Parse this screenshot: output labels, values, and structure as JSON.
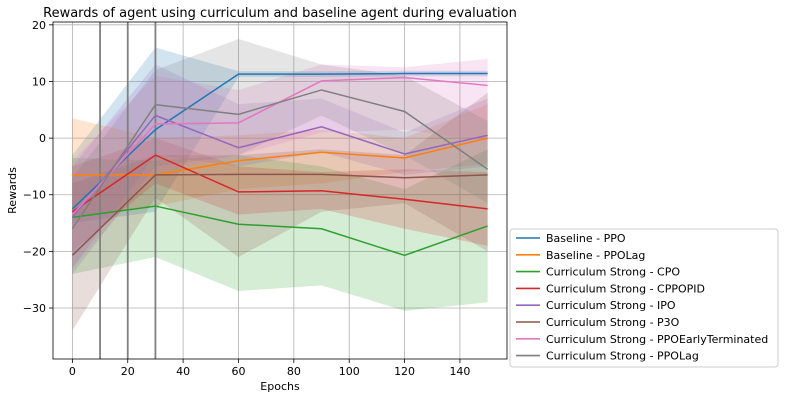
{
  "chart_data": {
    "type": "line",
    "title": "Rewards of agent using curriculum and baseline agent during evaluation",
    "xlabel": "Epochs",
    "ylabel": "Rewards",
    "xlim": [
      -7,
      157
    ],
    "ylim": [
      -39,
      20.5
    ],
    "xticks": [
      0,
      20,
      40,
      60,
      80,
      100,
      120,
      140
    ],
    "yticks": [
      -30,
      -20,
      -10,
      0,
      10,
      20
    ],
    "grid": true,
    "legend": "outside-right-bottom",
    "vlines": [
      10,
      20,
      30
    ],
    "x": [
      0,
      30,
      60,
      90,
      120,
      150
    ],
    "series": [
      {
        "name": "Baseline - PPO",
        "color": "#1f77b4",
        "values": [
          -12.5,
          1.5,
          11.3,
          11.3,
          11.4,
          11.4
        ],
        "lower": [
          -15,
          -13,
          10.8,
          10.8,
          10.9,
          10.9
        ],
        "upper": [
          -3,
          16,
          11.8,
          11.8,
          11.9,
          11.9
        ]
      },
      {
        "name": "Baseline - PPOLag",
        "color": "#ff7f0e",
        "values": [
          -6.5,
          -6.5,
          -4,
          -2.5,
          -3.5,
          0
        ],
        "lower": [
          -14,
          -12,
          -9,
          -8,
          -6,
          -4.5
        ],
        "upper": [
          3.5,
          0,
          0.5,
          1.5,
          0,
          6
        ]
      },
      {
        "name": "Curriculum Strong - CPO",
        "color": "#2ca02c",
        "values": [
          -14,
          -12,
          -15.2,
          -16,
          -20.7,
          -15.5
        ],
        "lower": [
          -24,
          -21,
          -27,
          -26,
          -30.5,
          -29
        ],
        "upper": [
          -3.5,
          -4,
          -3,
          -5,
          -9,
          -2
        ]
      },
      {
        "name": "Curriculum Strong - CPPOPID",
        "color": "#d62728",
        "values": [
          -13,
          -3,
          -9.5,
          -9.3,
          -10.8,
          -12.5
        ],
        "lower": [
          -20,
          -8,
          -13.5,
          -12.5,
          -16,
          -19
        ],
        "upper": [
          -5,
          0,
          -5,
          -6,
          -5.5,
          -6
        ]
      },
      {
        "name": "Curriculum Strong - IPO",
        "color": "#9467bd",
        "values": [
          -14,
          4,
          -1.7,
          2,
          -2.8,
          0.5
        ],
        "lower": [
          -23,
          -3,
          -5,
          -2.5,
          -6.5,
          -5
        ],
        "upper": [
          -5,
          13,
          6,
          7,
          1,
          7
        ]
      },
      {
        "name": "Curriculum Strong - P3O",
        "color": "#8c564b",
        "values": [
          -20.7,
          -6.5,
          -6.4,
          -6.4,
          -7,
          -6.5
        ],
        "lower": [
          -34,
          -10.5,
          -21,
          -13,
          -11.5,
          -20
        ],
        "upper": [
          -8,
          -3,
          -3,
          -2,
          -3,
          8
        ]
      },
      {
        "name": "Curriculum Strong - PPOEarlyTerminated",
        "color": "#e377c2",
        "values": [
          -13.5,
          2.5,
          2.7,
          10.1,
          10.7,
          9.3
        ],
        "lower": [
          -23,
          -6,
          -3,
          1,
          1.5,
          -0.5
        ],
        "upper": [
          -4,
          11,
          8.5,
          13,
          12.5,
          14
        ]
      },
      {
        "name": "Curriculum Strong - PPOLag",
        "color": "#7f7f7f",
        "values": [
          -16,
          5.9,
          4.2,
          8.5,
          4.7,
          -5.5
        ],
        "lower": [
          -24,
          -5,
          -3,
          4,
          -3,
          -11.5
        ],
        "upper": [
          -7,
          12,
          17.5,
          13,
          11,
          3
        ]
      }
    ]
  }
}
